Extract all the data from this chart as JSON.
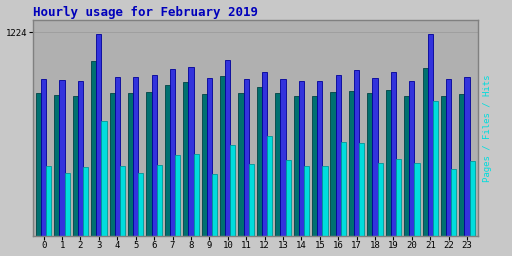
{
  "title": "Hourly usage for February 2019",
  "hours": [
    0,
    1,
    2,
    3,
    4,
    5,
    6,
    7,
    8,
    9,
    10,
    11,
    12,
    13,
    14,
    15,
    16,
    17,
    18,
    19,
    20,
    21,
    22,
    23
  ],
  "pages": [
    860,
    845,
    840,
    1050,
    860,
    860,
    865,
    910,
    925,
    855,
    960,
    860,
    895,
    860,
    840,
    840,
    865,
    870,
    860,
    875,
    840,
    1010,
    840,
    855
  ],
  "files": [
    945,
    935,
    930,
    1215,
    955,
    955,
    965,
    1005,
    1015,
    950,
    1055,
    945,
    985,
    945,
    930,
    930,
    970,
    995,
    950,
    985,
    930,
    1215,
    945,
    955
  ],
  "hits": [
    420,
    380,
    415,
    690,
    420,
    380,
    425,
    485,
    495,
    370,
    545,
    430,
    600,
    455,
    420,
    420,
    565,
    560,
    440,
    465,
    440,
    810,
    400,
    450
  ],
  "ylim": [
    0,
    1300
  ],
  "bar_width": 0.28,
  "pages_color": "#007070",
  "files_color": "#3333dd",
  "hits_color": "#00dddd",
  "pages_edge": "#004444",
  "files_edge": "#000099",
  "hits_edge": "#009999",
  "bg_color": "#c8c8c8",
  "plot_bg": "#b0b0b0",
  "title_color": "#0000bb",
  "ytick_label": "1224",
  "ytick_val": 1224,
  "figsize": [
    5.12,
    2.56
  ],
  "dpi": 100
}
